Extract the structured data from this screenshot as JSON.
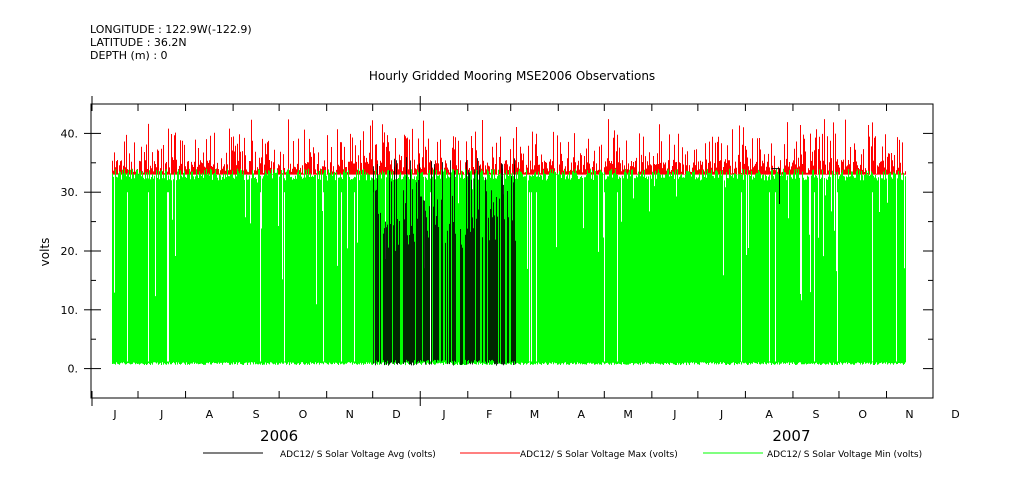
{
  "header": {
    "longitude": "LONGITUDE : 122.9W(-122.9)",
    "latitude": "LATITUDE : 36.2N",
    "depth": "DEPTH (m) : 0"
  },
  "chart_data": {
    "type": "line",
    "title": "Hourly Gridded Mooring MSE2006 Observations",
    "ylabel": "volts",
    "xlabel": "",
    "ylim": [
      -5,
      45
    ],
    "y_ticks": [
      0,
      10,
      20,
      30,
      40
    ],
    "y_tick_labels": [
      "0.",
      "10.",
      "20.",
      "30.",
      "40."
    ],
    "x_month_labels": [
      "J",
      "J",
      "A",
      "S",
      "O",
      "N",
      "D",
      "J",
      "F",
      "M",
      "A",
      "M",
      "J",
      "J",
      "A",
      "S",
      "O",
      "N",
      "D"
    ],
    "x_year_labels": [
      "2006",
      "2007"
    ],
    "x_range_days": [
      0,
      547
    ],
    "x_month_starts_days": [
      0,
      30,
      61,
      92,
      122,
      153,
      183,
      214,
      245,
      273,
      304,
      334,
      365,
      395,
      426,
      457,
      487,
      518,
      548
    ],
    "data_coverage_days": [
      13,
      530
    ],
    "series": [
      {
        "name": "ADC12/ S Solar Voltage Avg (volts)",
        "color": "#000000",
        "typical_range": [
          0.5,
          35
        ],
        "dense_period_days": [
          183,
          276
        ]
      },
      {
        "name": "ADC12/ S Solar Voltage Max (volts)",
        "color": "#ff0000",
        "typical_range": [
          33,
          40
        ]
      },
      {
        "name": "ADC12/ S Solar Voltage Min (volts)",
        "color": "#00ff00",
        "typical_range": [
          0.5,
          34
        ]
      }
    ]
  }
}
